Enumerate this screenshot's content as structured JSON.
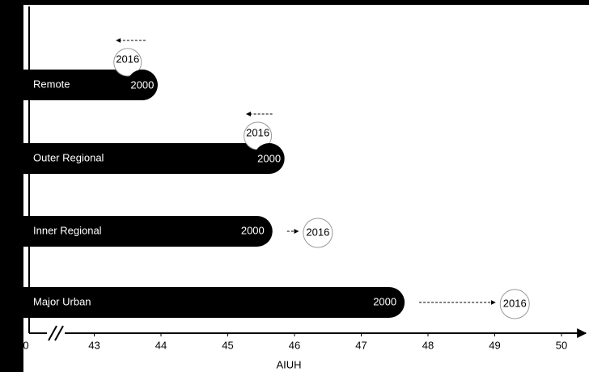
{
  "chart_data": {
    "type": "bar",
    "orientation": "horizontal",
    "categories": [
      "Remote",
      "Outer Regional",
      "Inner Regional",
      "Major Urban"
    ],
    "series": [
      {
        "name": "2000",
        "color": "#000000",
        "values": [
          43.95,
          45.85,
          45.67,
          47.65
        ]
      },
      {
        "name": "2016",
        "color": "#ffffff",
        "values": [
          43.5,
          45.45,
          46.35,
          49.3
        ]
      }
    ],
    "xlabel": "AIUH",
    "xlim": [
      42,
      50.4
    ],
    "xticks": [
      0,
      43,
      44,
      45,
      46,
      47,
      48,
      49,
      50
    ],
    "axis_break": true
  }
}
